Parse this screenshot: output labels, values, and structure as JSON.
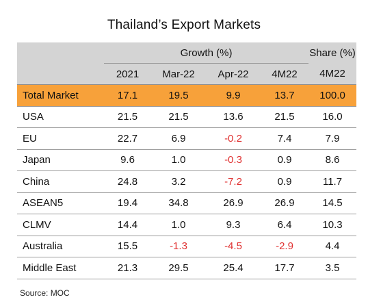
{
  "chart_data": {
    "type": "table",
    "title": "Thailand’s Export Markets",
    "header_groups": {
      "growth": "Growth (%)",
      "share": "Share (%)"
    },
    "columns": [
      "2021",
      "Mar-22",
      "Apr-22",
      "4M22",
      "4M22"
    ],
    "rows": [
      {
        "label": "Total Market",
        "values": [
          "17.1",
          "19.5",
          "9.9",
          "13.7",
          "100.0"
        ],
        "highlight": true
      },
      {
        "label": "USA",
        "values": [
          "21.5",
          "21.5",
          "13.6",
          "21.5",
          "16.0"
        ]
      },
      {
        "label": "EU",
        "values": [
          "22.7",
          "6.9",
          "-0.2",
          "7.4",
          "7.9"
        ]
      },
      {
        "label": "Japan",
        "values": [
          "9.6",
          "1.0",
          "-0.3",
          "0.9",
          "8.6"
        ]
      },
      {
        "label": "China",
        "values": [
          "24.8",
          "3.2",
          "-7.2",
          "0.9",
          "11.7"
        ]
      },
      {
        "label": "ASEAN5",
        "values": [
          "19.4",
          "34.8",
          "26.9",
          "26.9",
          "14.5"
        ]
      },
      {
        "label": "CLMV",
        "values": [
          "14.4",
          "1.0",
          "9.3",
          "6.4",
          "10.3"
        ]
      },
      {
        "label": "Australia",
        "values": [
          "15.5",
          "-1.3",
          "-4.5",
          "-2.9",
          "4.4"
        ]
      },
      {
        "label": "Middle East",
        "values": [
          "21.3",
          "29.5",
          "25.4",
          "17.7",
          "3.5"
        ]
      }
    ],
    "source": "Source: MOC"
  },
  "colors": {
    "header_bg": "#d4d4d4",
    "highlight_row": "#f7a13a",
    "negative_text": "#e03131"
  }
}
